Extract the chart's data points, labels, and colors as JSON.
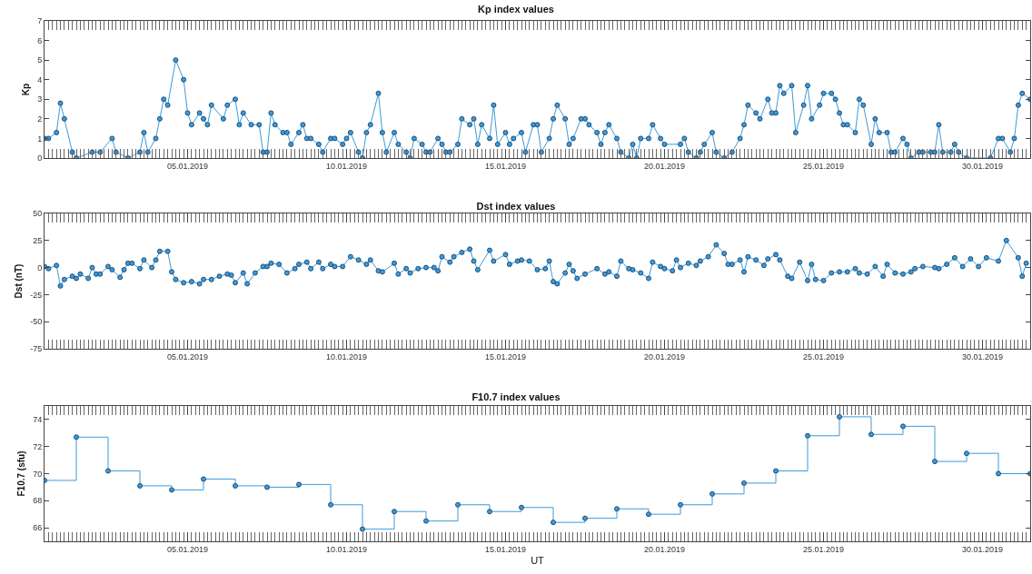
{
  "chart_data": [
    {
      "type": "line",
      "title": "Kp index values",
      "ylabel": "Kp",
      "color": "#3d9ad9",
      "marker": "circle",
      "line_style": "solid",
      "xlim": [
        "2018-12-31T12:00",
        "2019-01-31T12:00"
      ],
      "xticks": [
        {
          "value": "2019-01-05",
          "label": "05.01.2019"
        },
        {
          "value": "2019-01-10",
          "label": "10.01.2019"
        },
        {
          "value": "2019-01-15",
          "label": "15.01.2019"
        },
        {
          "value": "2019-01-20",
          "label": "20.01.2019"
        },
        {
          "value": "2019-01-25",
          "label": "25.01.2019"
        },
        {
          "value": "2019-01-30",
          "label": "30.01.2019"
        }
      ],
      "ylim": [
        0,
        7
      ],
      "yticks": [
        0,
        1,
        2,
        3,
        4,
        5,
        6,
        7
      ],
      "x": [
        "2018-12-31T12:00",
        "2018-12-31T15:00",
        "2018-12-31T21:00",
        "2019-01-01T00:00",
        "2019-01-01T03:00",
        "2019-01-01T09:00",
        "2019-01-01T12:00",
        "2019-01-02T00:00",
        "2019-01-02T06:00",
        "2019-01-02T15:00",
        "2019-01-02T18:00",
        "2019-01-03T03:00",
        "2019-01-03T12:00",
        "2019-01-03T15:00",
        "2019-01-03T18:00",
        "2019-01-04T00:00",
        "2019-01-04T03:00",
        "2019-01-04T06:00",
        "2019-01-04T09:00",
        "2019-01-04T15:00",
        "2019-01-04T21:00",
        "2019-01-05T00:00",
        "2019-01-05T03:00",
        "2019-01-05T09:00",
        "2019-01-05T12:00",
        "2019-01-05T15:00",
        "2019-01-05T18:00",
        "2019-01-06T03:00",
        "2019-01-06T06:00",
        "2019-01-06T12:00",
        "2019-01-06T15:00",
        "2019-01-06T18:00",
        "2019-01-07T00:00",
        "2019-01-07T06:00",
        "2019-01-07T09:00",
        "2019-01-07T12:00",
        "2019-01-07T15:00",
        "2019-01-07T18:00",
        "2019-01-08T00:00",
        "2019-01-08T03:00",
        "2019-01-08T06:00",
        "2019-01-08T12:00",
        "2019-01-08T15:00",
        "2019-01-08T18:00",
        "2019-01-08T21:00",
        "2019-01-09T03:00",
        "2019-01-09T06:00",
        "2019-01-09T12:00",
        "2019-01-09T15:00",
        "2019-01-09T21:00",
        "2019-01-10T00:00",
        "2019-01-10T03:00",
        "2019-01-10T09:00",
        "2019-01-10T12:00",
        "2019-01-10T15:00",
        "2019-01-10T18:00",
        "2019-01-11T00:00",
        "2019-01-11T03:00",
        "2019-01-11T06:00",
        "2019-01-11T12:00",
        "2019-01-11T15:00",
        "2019-01-11T21:00",
        "2019-01-12T00:00",
        "2019-01-12T03:00",
        "2019-01-12T09:00",
        "2019-01-12T12:00",
        "2019-01-12T15:00",
        "2019-01-12T21:00",
        "2019-01-13T00:00",
        "2019-01-13T03:00",
        "2019-01-13T06:00",
        "2019-01-13T12:00",
        "2019-01-13T15:00",
        "2019-01-13T21:00",
        "2019-01-14T00:00",
        "2019-01-14T03:00",
        "2019-01-14T06:00",
        "2019-01-14T12:00",
        "2019-01-14T15:00",
        "2019-01-14T18:00",
        "2019-01-15T00:00",
        "2019-01-15T03:00",
        "2019-01-15T06:00",
        "2019-01-15T12:00",
        "2019-01-15T15:00",
        "2019-01-15T21:00",
        "2019-01-16T00:00",
        "2019-01-16T03:00",
        "2019-01-16T09:00",
        "2019-01-16T12:00",
        "2019-01-16T15:00",
        "2019-01-16T21:00",
        "2019-01-17T00:00",
        "2019-01-17T03:00",
        "2019-01-17T09:00",
        "2019-01-17T12:00",
        "2019-01-17T15:00",
        "2019-01-17T21:00",
        "2019-01-18T00:00",
        "2019-01-18T03:00",
        "2019-01-18T06:00",
        "2019-01-18T12:00",
        "2019-01-18T15:00",
        "2019-01-18T21:00",
        "2019-01-19T00:00",
        "2019-01-19T03:00",
        "2019-01-19T06:00",
        "2019-01-19T12:00",
        "2019-01-19T15:00",
        "2019-01-19T21:00",
        "2019-01-20T00:00",
        "2019-01-20T12:00",
        "2019-01-20T15:00",
        "2019-01-20T18:00",
        "2019-01-21T00:00",
        "2019-01-21T03:00",
        "2019-01-21T06:00",
        "2019-01-21T12:00",
        "2019-01-21T15:00",
        "2019-01-21T21:00",
        "2019-01-22T03:00",
        "2019-01-22T09:00",
        "2019-01-22T12:00",
        "2019-01-22T15:00",
        "2019-01-22T21:00",
        "2019-01-23T00:00",
        "2019-01-23T06:00",
        "2019-01-23T09:00",
        "2019-01-23T12:00",
        "2019-01-23T15:00",
        "2019-01-23T18:00",
        "2019-01-24T00:00",
        "2019-01-24T03:00",
        "2019-01-24T09:00",
        "2019-01-24T12:00",
        "2019-01-24T15:00",
        "2019-01-24T21:00",
        "2019-01-25T00:00",
        "2019-01-25T06:00",
        "2019-01-25T09:00",
        "2019-01-25T12:00",
        "2019-01-25T15:00",
        "2019-01-25T18:00",
        "2019-01-26T00:00",
        "2019-01-26T03:00",
        "2019-01-26T06:00",
        "2019-01-26T12:00",
        "2019-01-26T15:00",
        "2019-01-26T18:00",
        "2019-01-27T00:00",
        "2019-01-27T03:00",
        "2019-01-27T06:00",
        "2019-01-27T12:00",
        "2019-01-27T15:00",
        "2019-01-27T18:00",
        "2019-01-28T00:00",
        "2019-01-28T03:00",
        "2019-01-28T09:00",
        "2019-01-28T12:00",
        "2019-01-28T15:00",
        "2019-01-28T18:00",
        "2019-01-29T00:00",
        "2019-01-29T03:00",
        "2019-01-29T06:00",
        "2019-01-29T12:00",
        "2019-01-30T06:00",
        "2019-01-30T12:00",
        "2019-01-30T15:00",
        "2019-01-30T21:00",
        "2019-01-31T00:00",
        "2019-01-31T03:00",
        "2019-01-31T06:00",
        "2019-01-31T12:00"
      ],
      "values": [
        1.0,
        1.0,
        1.3,
        2.8,
        2.0,
        0.3,
        0,
        0.3,
        0.3,
        1.0,
        0.3,
        0,
        0.3,
        1.3,
        0.3,
        1.0,
        2.0,
        3.0,
        2.7,
        5.0,
        4.0,
        2.3,
        1.7,
        2.3,
        2.0,
        1.7,
        2.7,
        2.0,
        2.7,
        3.0,
        1.7,
        2.3,
        1.7,
        1.7,
        0.3,
        0.3,
        2.3,
        1.7,
        1.3,
        1.3,
        0.7,
        1.3,
        1.7,
        1.0,
        1.0,
        0.7,
        0.3,
        1.0,
        1.0,
        0.7,
        1.0,
        1.3,
        0.3,
        0,
        1.3,
        1.7,
        3.3,
        1.3,
        0.3,
        1.3,
        0.7,
        0.3,
        0,
        1.0,
        0.7,
        0.3,
        0.3,
        1.0,
        0.7,
        0.3,
        0.3,
        0.7,
        2.0,
        1.7,
        2.0,
        0.7,
        1.7,
        1.0,
        2.7,
        0.7,
        1.3,
        0.7,
        1.0,
        1.3,
        0.3,
        1.7,
        1.7,
        0.3,
        1.0,
        2.0,
        2.7,
        2.0,
        0.7,
        1.0,
        2.0,
        2.0,
        1.7,
        1.3,
        0.7,
        1.3,
        1.7,
        1.0,
        0.3,
        0,
        0.7,
        0,
        1.0,
        1.0,
        1.7,
        1.0,
        0.7,
        0.7,
        1.0,
        0.3,
        0,
        0.3,
        0.7,
        1.3,
        0.3,
        0,
        0.3,
        1.0,
        1.7,
        2.7,
        2.3,
        2.0,
        3.0,
        2.3,
        2.3,
        3.7,
        3.3,
        3.7,
        1.3,
        2.7,
        3.7,
        2.0,
        2.7,
        3.3,
        3.3,
        3.0,
        2.3,
        1.7,
        1.7,
        1.3,
        3.0,
        2.7,
        0.7,
        2.0,
        1.3,
        1.3,
        0.3,
        0.3,
        1.0,
        0.7,
        0,
        0.3,
        0.3,
        0.3,
        0.3,
        1.7,
        0.3,
        0.3,
        0.7,
        0.3,
        0,
        0,
        1.0,
        1.0,
        0.3,
        1.0,
        2.7,
        3.3,
        3.0
      ]
    },
    {
      "type": "line",
      "title": "Dst index values",
      "ylabel": "Dst (nT)",
      "color": "#3d9ad9",
      "marker": "circle",
      "line_style": "solid",
      "xlim": [
        "2018-12-31T12:00",
        "2019-01-31T12:00"
      ],
      "xticks": [
        {
          "value": "2019-01-05",
          "label": "05.01.2019"
        },
        {
          "value": "2019-01-10",
          "label": "10.01.2019"
        },
        {
          "value": "2019-01-15",
          "label": "15.01.2019"
        },
        {
          "value": "2019-01-20",
          "label": "20.01.2019"
        },
        {
          "value": "2019-01-25",
          "label": "25.01.2019"
        },
        {
          "value": "2019-01-30",
          "label": "30.01.2019"
        }
      ],
      "ylim": [
        -75,
        50
      ],
      "yticks": [
        -75,
        -50,
        -25,
        0,
        25,
        50
      ],
      "x": [
        "2018-12-31T12:00",
        "2018-12-31T15:00",
        "2018-12-31T21:00",
        "2019-01-01T00:00",
        "2019-01-01T03:00",
        "2019-01-01T09:00",
        "2019-01-01T12:00",
        "2019-01-01T15:00",
        "2019-01-01T21:00",
        "2019-01-02T00:00",
        "2019-01-02T03:00",
        "2019-01-02T06:00",
        "2019-01-02T12:00",
        "2019-01-02T15:00",
        "2019-01-02T21:00",
        "2019-01-03T00:00",
        "2019-01-03T03:00",
        "2019-01-03T06:00",
        "2019-01-03T12:00",
        "2019-01-03T15:00",
        "2019-01-03T21:00",
        "2019-01-04T00:00",
        "2019-01-04T03:00",
        "2019-01-04T09:00",
        "2019-01-04T12:00",
        "2019-01-04T15:00",
        "2019-01-04T21:00",
        "2019-01-05T03:00",
        "2019-01-05T09:00",
        "2019-01-05T12:00",
        "2019-01-05T18:00",
        "2019-01-06T00:00",
        "2019-01-06T06:00",
        "2019-01-06T09:00",
        "2019-01-06T12:00",
        "2019-01-06T18:00",
        "2019-01-06T21:00",
        "2019-01-07T03:00",
        "2019-01-07T09:00",
        "2019-01-07T12:00",
        "2019-01-07T15:00",
        "2019-01-07T21:00",
        "2019-01-08T03:00",
        "2019-01-08T09:00",
        "2019-01-08T12:00",
        "2019-01-08T18:00",
        "2019-01-08T21:00",
        "2019-01-09T03:00",
        "2019-01-09T06:00",
        "2019-01-09T12:00",
        "2019-01-09T15:00",
        "2019-01-09T21:00",
        "2019-01-10T03:00",
        "2019-01-10T09:00",
        "2019-01-10T15:00",
        "2019-01-10T18:00",
        "2019-01-11T00:00",
        "2019-01-11T03:00",
        "2019-01-11T12:00",
        "2019-01-11T15:00",
        "2019-01-11T21:00",
        "2019-01-12T00:00",
        "2019-01-12T06:00",
        "2019-01-12T12:00",
        "2019-01-12T18:00",
        "2019-01-12T21:00",
        "2019-01-13T00:00",
        "2019-01-13T06:00",
        "2019-01-13T09:00",
        "2019-01-13T15:00",
        "2019-01-13T21:00",
        "2019-01-14T00:00",
        "2019-01-14T03:00",
        "2019-01-14T12:00",
        "2019-01-14T15:00",
        "2019-01-15T00:00",
        "2019-01-15T03:00",
        "2019-01-15T09:00",
        "2019-01-15T12:00",
        "2019-01-15T18:00",
        "2019-01-16T00:00",
        "2019-01-16T06:00",
        "2019-01-16T09:00",
        "2019-01-16T12:00",
        "2019-01-16T15:00",
        "2019-01-16T21:00",
        "2019-01-17T00:00",
        "2019-01-17T03:00",
        "2019-01-17T06:00",
        "2019-01-17T12:00",
        "2019-01-17T21:00",
        "2019-01-18T03:00",
        "2019-01-18T06:00",
        "2019-01-18T12:00",
        "2019-01-18T15:00",
        "2019-01-18T21:00",
        "2019-01-19T00:00",
        "2019-01-19T06:00",
        "2019-01-19T12:00",
        "2019-01-19T15:00",
        "2019-01-19T21:00",
        "2019-01-20T00:00",
        "2019-01-20T06:00",
        "2019-01-20T09:00",
        "2019-01-20T12:00",
        "2019-01-20T18:00",
        "2019-01-21T00:00",
        "2019-01-21T03:00",
        "2019-01-21T09:00",
        "2019-01-21T15:00",
        "2019-01-21T21:00",
        "2019-01-22T00:00",
        "2019-01-22T03:00",
        "2019-01-22T09:00",
        "2019-01-22T12:00",
        "2019-01-22T15:00",
        "2019-01-22T21:00",
        "2019-01-23T03:00",
        "2019-01-23T06:00",
        "2019-01-23T12:00",
        "2019-01-23T15:00",
        "2019-01-23T21:00",
        "2019-01-24T00:00",
        "2019-01-24T06:00",
        "2019-01-24T12:00",
        "2019-01-24T15:00",
        "2019-01-24T18:00",
        "2019-01-25T00:00",
        "2019-01-25T06:00",
        "2019-01-25T12:00",
        "2019-01-25T18:00",
        "2019-01-26T00:00",
        "2019-01-26T03:00",
        "2019-01-26T09:00",
        "2019-01-26T15:00",
        "2019-01-26T21:00",
        "2019-01-27T00:00",
        "2019-01-27T06:00",
        "2019-01-27T12:00",
        "2019-01-27T18:00",
        "2019-01-27T21:00",
        "2019-01-28T03:00",
        "2019-01-28T12:00",
        "2019-01-28T15:00",
        "2019-01-28T21:00",
        "2019-01-29T03:00",
        "2019-01-29T09:00",
        "2019-01-29T15:00",
        "2019-01-29T21:00",
        "2019-01-30T03:00",
        "2019-01-30T12:00",
        "2019-01-30T18:00",
        "2019-01-31T03:00",
        "2019-01-31T06:00",
        "2019-01-31T09:00"
      ],
      "values": [
        1,
        -1,
        2,
        -17,
        -11,
        -8,
        -10,
        -6,
        -10,
        0,
        -6,
        -6,
        1,
        -2,
        -9,
        -2,
        4,
        4,
        -1,
        7,
        0,
        7,
        15,
        15,
        -4,
        -11,
        -14,
        -13,
        -15,
        -11,
        -11,
        -8,
        -6,
        -7,
        -14,
        -5,
        -15,
        -5,
        1,
        1,
        4,
        3,
        -5,
        -1,
        3,
        5,
        -1,
        5,
        -1,
        3,
        1,
        1,
        10,
        7,
        3,
        7,
        -3,
        -4,
        4,
        -6,
        -1,
        -5,
        -1,
        0,
        0,
        -3,
        10,
        5,
        10,
        14,
        17,
        6,
        -2,
        16,
        6,
        12,
        3,
        6,
        7,
        6,
        -2,
        -1,
        6,
        -13,
        -15,
        -5,
        3,
        -3,
        -10,
        -6,
        -1,
        -6,
        -4,
        -8,
        6,
        -1,
        -2,
        -5,
        -10,
        5,
        1,
        -1,
        -3,
        7,
        0,
        4,
        2,
        6,
        10,
        21,
        13,
        3,
        3,
        7,
        -4,
        10,
        7,
        2,
        8,
        12,
        7,
        -8,
        -10,
        5,
        -12,
        3,
        -11,
        -12,
        -5,
        -4,
        -4,
        -1,
        -5,
        -6,
        1,
        -8,
        3,
        -5,
        -6,
        -4,
        -1,
        1,
        0,
        -1,
        3,
        9,
        1,
        8,
        1,
        9,
        6,
        25,
        9,
        -8,
        4
      ]
    },
    {
      "type": "step",
      "title": "F10.7 index values",
      "xlabel": "UT",
      "ylabel": "F10.7 (sfu)",
      "color": "#3d9ad9",
      "marker": "circle",
      "line_style": "solid",
      "xlim": [
        "2018-12-31T12:00",
        "2019-01-31T12:00"
      ],
      "xticks": [
        {
          "value": "2019-01-05",
          "label": "05.01.2019"
        },
        {
          "value": "2019-01-10",
          "label": "10.01.2019"
        },
        {
          "value": "2019-01-15",
          "label": "15.01.2019"
        },
        {
          "value": "2019-01-20",
          "label": "20.01.2019"
        },
        {
          "value": "2019-01-25",
          "label": "25.01.2019"
        },
        {
          "value": "2019-01-30",
          "label": "30.01.2019"
        }
      ],
      "ylim": [
        65,
        75
      ],
      "yticks": [
        66,
        68,
        70,
        72,
        74
      ],
      "x": [
        "2018-12-31T12:00",
        "2019-01-01T12:00",
        "2019-01-02T12:00",
        "2019-01-03T12:00",
        "2019-01-04T12:00",
        "2019-01-05T12:00",
        "2019-01-06T12:00",
        "2019-01-07T12:00",
        "2019-01-08T12:00",
        "2019-01-09T12:00",
        "2019-01-10T12:00",
        "2019-01-11T12:00",
        "2019-01-12T12:00",
        "2019-01-13T12:00",
        "2019-01-14T12:00",
        "2019-01-15T12:00",
        "2019-01-16T12:00",
        "2019-01-17T12:00",
        "2019-01-18T12:00",
        "2019-01-19T12:00",
        "2019-01-20T12:00",
        "2019-01-21T12:00",
        "2019-01-22T12:00",
        "2019-01-23T12:00",
        "2019-01-24T12:00",
        "2019-01-25T12:00",
        "2019-01-26T12:00",
        "2019-01-27T12:00",
        "2019-01-28T12:00",
        "2019-01-29T12:00",
        "2019-01-30T12:00",
        "2019-01-31T12:00"
      ],
      "values": [
        69.5,
        72.7,
        70.2,
        69.1,
        68.8,
        69.6,
        69.1,
        69.0,
        69.2,
        67.7,
        65.9,
        67.2,
        66.5,
        67.7,
        67.2,
        67.5,
        66.4,
        66.7,
        67.4,
        67.0,
        67.7,
        68.5,
        69.3,
        70.2,
        72.8,
        74.2,
        72.9,
        73.5,
        70.9,
        71.5,
        70.0,
        70.0
      ]
    }
  ]
}
